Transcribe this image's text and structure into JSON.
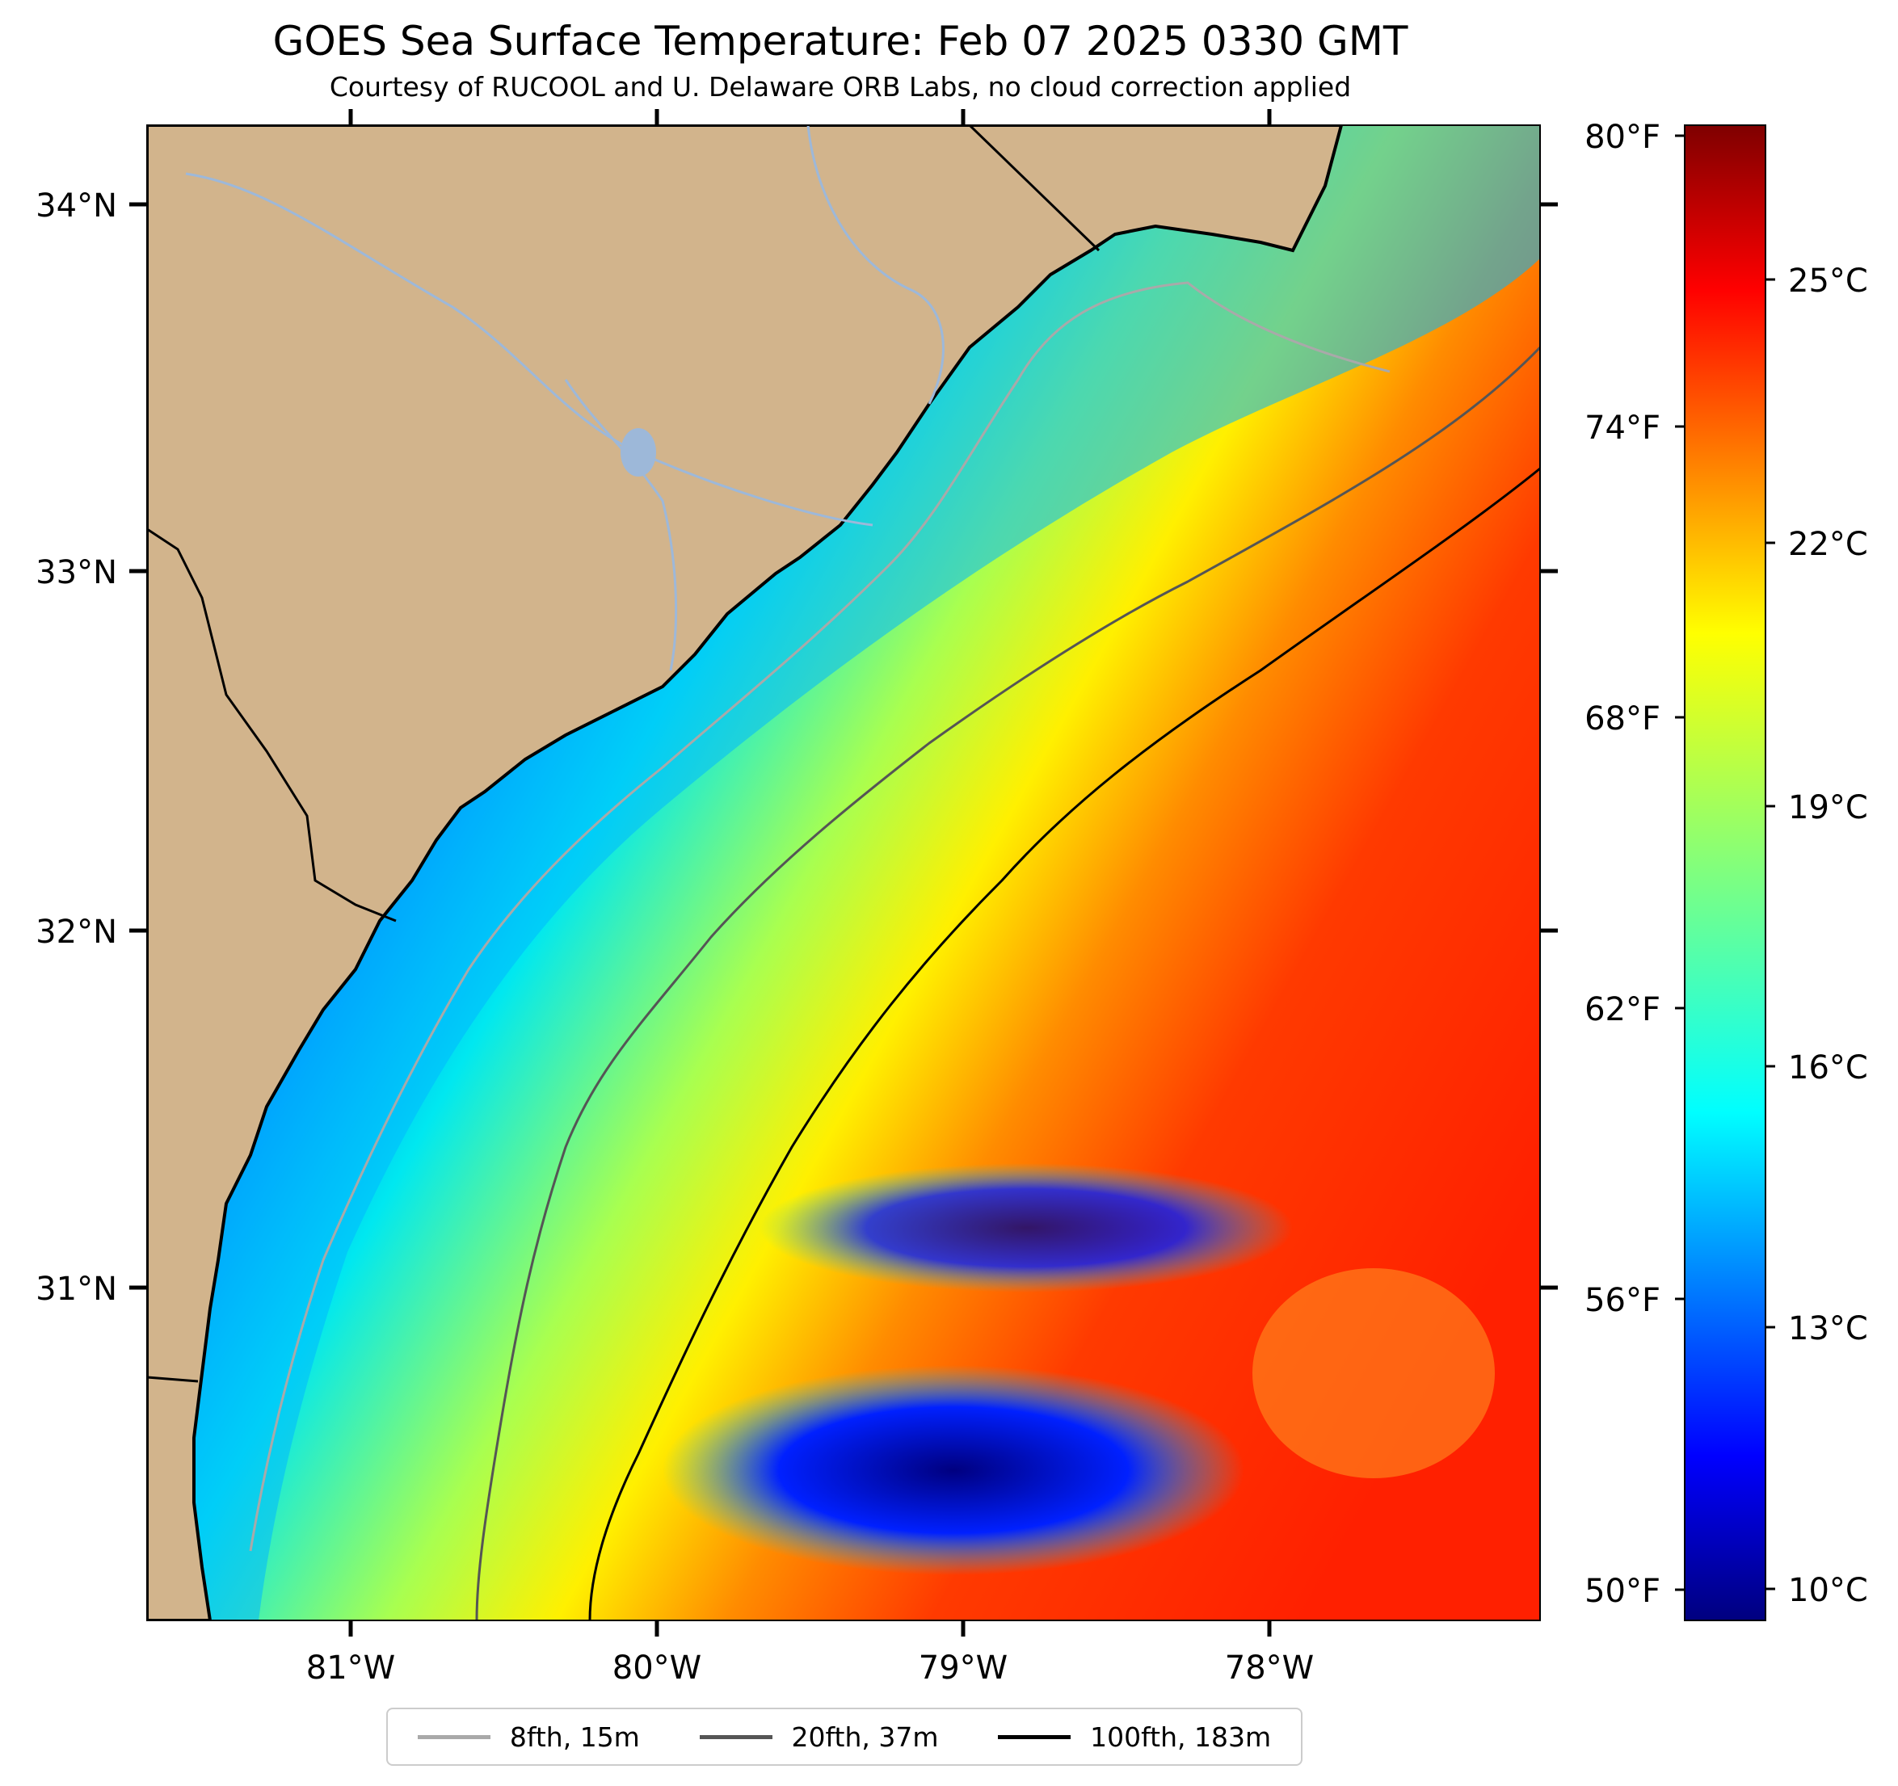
{
  "title": "GOES Sea Surface Temperature: Feb 07 2025 0330 GMT",
  "subtitle": "Courtesy of RUCOOL and U. Delaware ORB Labs, no cloud correction applied",
  "map": {
    "lat_labels": [
      "34°N",
      "33°N",
      "32°N",
      "31°N"
    ],
    "lon_labels": [
      "81°W",
      "80°W",
      "79°W",
      "78°W"
    ],
    "land_color": "#d2b48c",
    "river_color": "#9db8d9",
    "lat_range": [
      30.1,
      34.2
    ],
    "lon_range": [
      -81.67,
      -77.1
    ]
  },
  "colorbar": {
    "colormap": "jet",
    "range_c": [
      9.5,
      27
    ],
    "celsius_labels": [
      "25°C",
      "22°C",
      "19°C",
      "16°C",
      "13°C",
      "10°C"
    ],
    "fahrenheit_labels": [
      "80°F",
      "74°F",
      "68°F",
      "62°F",
      "56°F",
      "50°F"
    ]
  },
  "legend": {
    "items": [
      {
        "label": "8fth, 15m",
        "color": "#a9a9a9"
      },
      {
        "label": "20fth, 37m",
        "color": "#555555"
      },
      {
        "label": "100fth, 183m",
        "color": "#000000"
      }
    ]
  }
}
